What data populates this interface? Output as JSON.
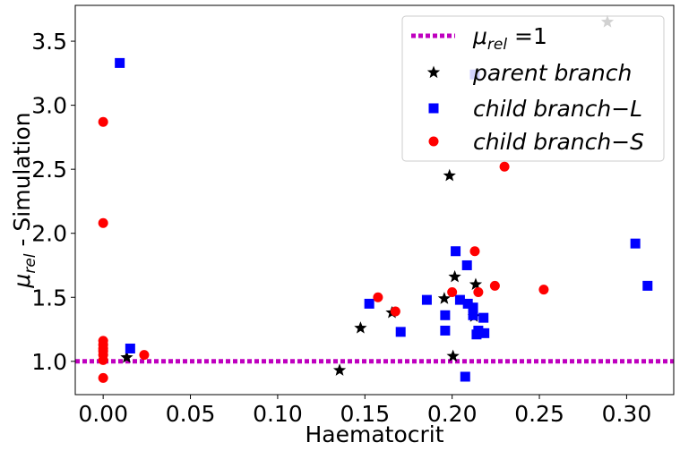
{
  "chart_data": {
    "type": "scatter",
    "xlabel": "Haematocrit",
    "ylabel": "μrel - Simulation",
    "ylabel_parts": {
      "main": "μ",
      "sub": "rel",
      "rest": " - Simulation"
    },
    "xlim": [
      -0.016,
      0.327
    ],
    "ylim": [
      0.74,
      3.78
    ],
    "xticks": [
      0.0,
      0.05,
      0.1,
      0.15,
      0.2,
      0.25,
      0.3
    ],
    "xtick_labels": [
      "0.00",
      "0.05",
      "0.10",
      "0.15",
      "0.20",
      "0.25",
      "0.30"
    ],
    "yticks": [
      1.0,
      1.5,
      2.0,
      2.5,
      3.0,
      3.5
    ],
    "ytick_labels": [
      "1.0",
      "1.5",
      "2.0",
      "2.5",
      "3.0",
      "3.5"
    ],
    "grid": false,
    "legend_position": "top-right",
    "reference_line": {
      "name": "μrel =1",
      "legend_parts": {
        "main": "μ",
        "sub": "rel",
        "rest": " =1"
      },
      "y": 1.0,
      "style": "dotted",
      "color": "#bf00bf"
    },
    "series": [
      {
        "name": "parent branch",
        "marker": "star",
        "color": "#000000",
        "points": [
          [
            0.0135,
            1.03
          ],
          [
            0.1355,
            0.93
          ],
          [
            0.1475,
            1.26
          ],
          [
            0.1655,
            1.38
          ],
          [
            0.1955,
            1.49
          ],
          [
            0.1985,
            2.45
          ],
          [
            0.2005,
            1.04
          ],
          [
            0.2015,
            1.66
          ],
          [
            0.2125,
            1.35
          ],
          [
            0.2135,
            1.6
          ],
          [
            0.289,
            3.65
          ]
        ]
      },
      {
        "name": "child branch−L",
        "marker": "square",
        "color": "#0000ff",
        "points": [
          [
            0.0095,
            3.33
          ],
          [
            0.0155,
            1.1
          ],
          [
            0.1525,
            1.45
          ],
          [
            0.1705,
            1.23
          ],
          [
            0.1855,
            1.48
          ],
          [
            0.196,
            1.24
          ],
          [
            0.196,
            1.36
          ],
          [
            0.202,
            1.86
          ],
          [
            0.2045,
            1.48
          ],
          [
            0.2075,
            0.88
          ],
          [
            0.2085,
            1.75
          ],
          [
            0.209,
            1.45
          ],
          [
            0.212,
            1.42
          ],
          [
            0.212,
            1.36
          ],
          [
            0.213,
            3.24
          ],
          [
            0.214,
            1.21
          ],
          [
            0.215,
            1.24
          ],
          [
            0.218,
            1.34
          ],
          [
            0.2185,
            1.22
          ],
          [
            0.305,
            1.92
          ],
          [
            0.312,
            1.59
          ]
        ]
      },
      {
        "name": "child branch−S",
        "marker": "circle",
        "color": "#ff0000",
        "points": [
          [
            0.0,
            2.87
          ],
          [
            0.0,
            2.08
          ],
          [
            0.0,
            1.16
          ],
          [
            0.0,
            1.13
          ],
          [
            0.0,
            1.1
          ],
          [
            0.0,
            1.08
          ],
          [
            0.0,
            1.05
          ],
          [
            0.0,
            1.01
          ],
          [
            0.0,
            0.87
          ],
          [
            0.0235,
            1.05
          ],
          [
            0.1575,
            1.5
          ],
          [
            0.1675,
            1.39
          ],
          [
            0.2,
            1.54
          ],
          [
            0.213,
            1.86
          ],
          [
            0.215,
            1.54
          ],
          [
            0.2245,
            1.59
          ],
          [
            0.23,
            2.52
          ],
          [
            0.2525,
            1.56
          ]
        ]
      }
    ]
  }
}
